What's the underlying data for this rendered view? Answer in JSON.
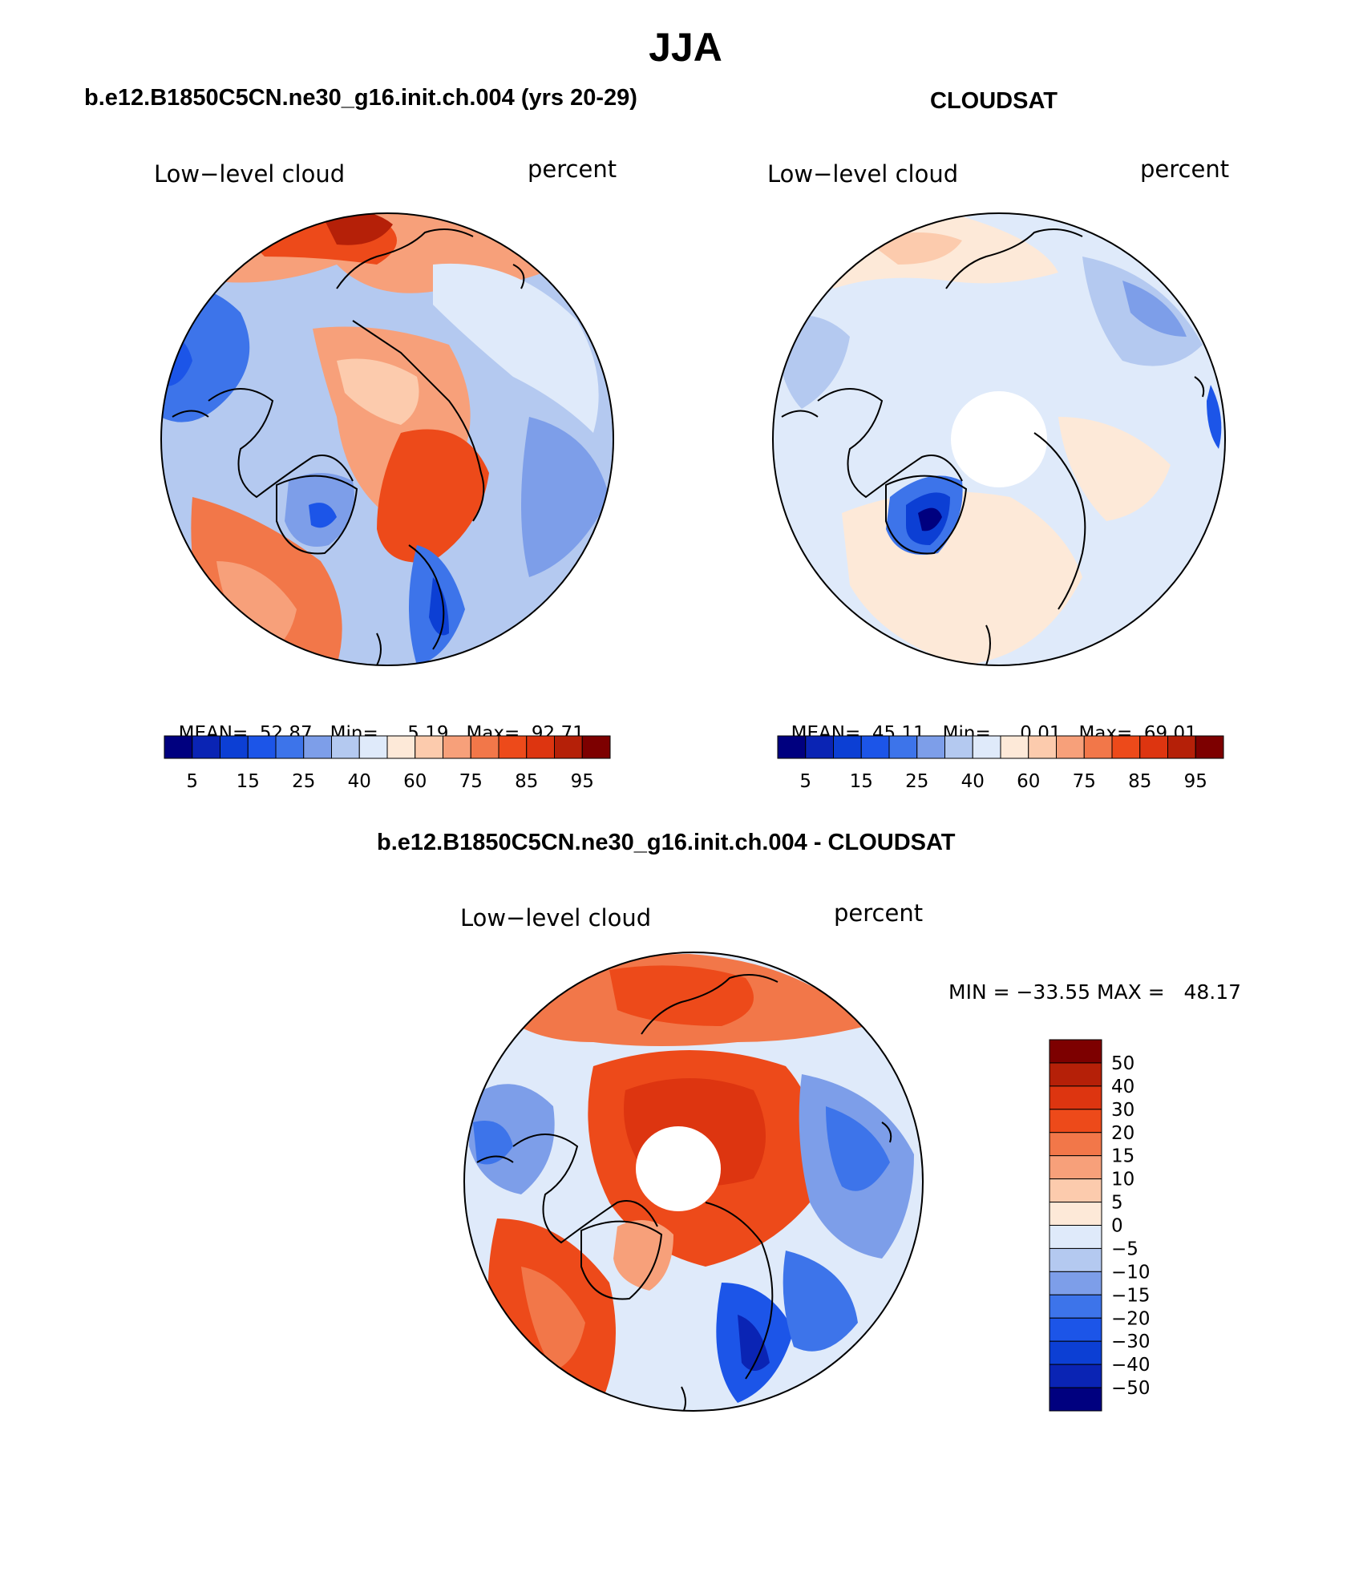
{
  "figure_title": "JJA",
  "panels": [
    {
      "header": "b.e12.B1850C5CN.ne30_g16.init.ch.004 (yrs 20-29)",
      "left_label": "Low−level cloud",
      "right_label": "percent",
      "stats": {
        "mean_label": "MEAN=",
        "mean": "52.87",
        "min_label": "Min=",
        "min": "5.19",
        "max_label": "Max=",
        "max": "92.71"
      },
      "polar_cap_missing": false
    },
    {
      "header": "CLOUDSAT",
      "left_label": "Low−level cloud",
      "right_label": "percent",
      "stats": {
        "mean_label": "MEAN=",
        "mean": "45.11",
        "min_label": "Min=",
        "min": "0.01",
        "max_label": "Max=",
        "max": "69.01"
      },
      "polar_cap_missing": true
    },
    {
      "header": "b.e12.B1850C5CN.ne30_g16.init.ch.004 - CLOUDSAT",
      "left_label": "Low−level cloud",
      "right_label": "percent",
      "minmax_text": "MIN = −33.55 MAX =   48.17",
      "polar_cap_missing": true
    }
  ],
  "colorbar_abs": {
    "colors": [
      "#00007f",
      "#0a24b4",
      "#0c3fd4",
      "#1c55e8",
      "#3d74ea",
      "#7d9ee9",
      "#b4c9f0",
      "#dfeafa",
      "#fde9d8",
      "#fccbad",
      "#f7a07a",
      "#f27749",
      "#ed4a1a",
      "#dd3510",
      "#b52008",
      "#7d0000"
    ],
    "tick_labels": [
      "5",
      "15",
      "25",
      "40",
      "60",
      "75",
      "85",
      "95"
    ]
  },
  "colorbar_diff": {
    "colors": [
      "#7d0000",
      "#b52008",
      "#dd3510",
      "#ed4a1a",
      "#f27749",
      "#f7a07a",
      "#fccbad",
      "#fde9d8",
      "#dfeafa",
      "#b4c9f0",
      "#7d9ee9",
      "#3d74ea",
      "#1c55e8",
      "#0c3fd4",
      "#0a24b4",
      "#00007f"
    ],
    "tick_labels": [
      "50",
      "40",
      "30",
      "20",
      "15",
      "10",
      "5",
      "0",
      "−5",
      "−10",
      "−15",
      "−20",
      "−30",
      "−40",
      "−50"
    ]
  }
}
